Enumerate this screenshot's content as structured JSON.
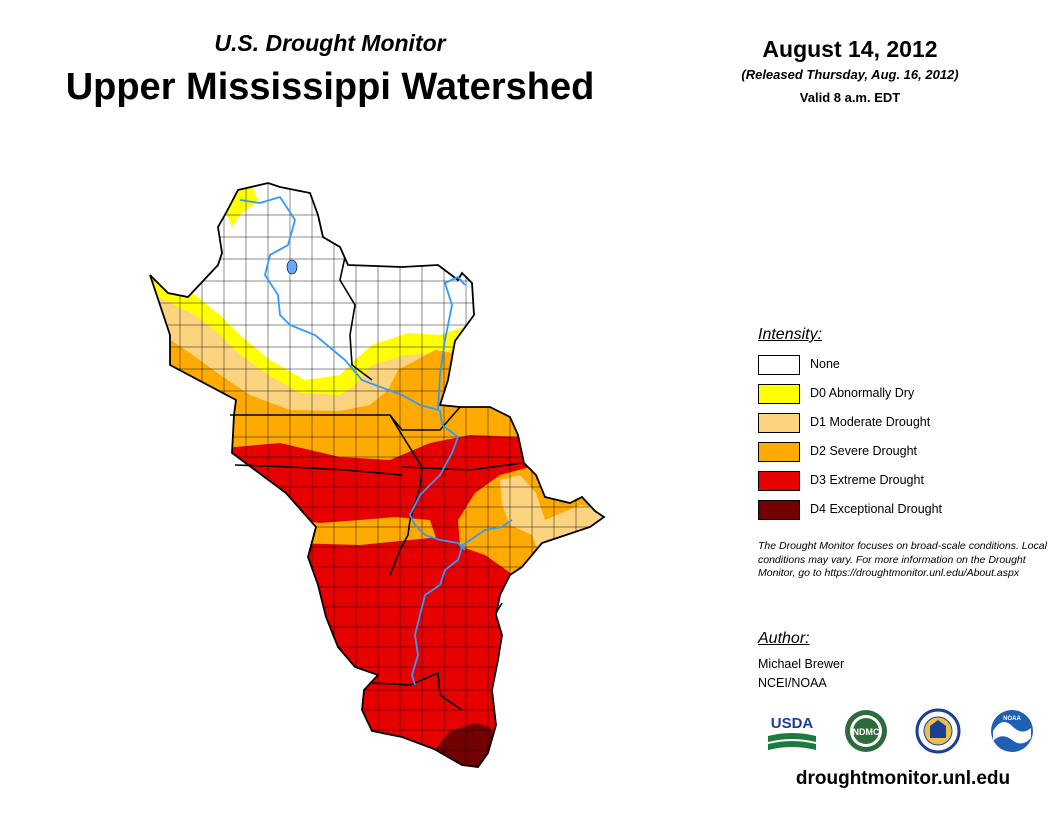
{
  "header": {
    "subtitle": "U.S. Drought Monitor",
    "title": "Upper Mississippi Watershed",
    "date": "August 14, 2012",
    "released": "(Released Thursday, Aug. 16, 2012)",
    "valid": "Valid 8 a.m. EDT"
  },
  "legend": {
    "heading": "Intensity:",
    "items": [
      {
        "label": "None",
        "color": "#ffffff"
      },
      {
        "label": "D0 Abnormally Dry",
        "color": "#ffff00"
      },
      {
        "label": "D1 Moderate Drought",
        "color": "#fcd37f"
      },
      {
        "label": "D2 Severe Drought",
        "color": "#ffaa00"
      },
      {
        "label": "D3 Extreme Drought",
        "color": "#e60000"
      },
      {
        "label": "D4 Exceptional Drought",
        "color": "#730000"
      }
    ]
  },
  "note": "The Drought Monitor focuses on broad-scale conditions. Local conditions may vary. For more information on the Drought Monitor, go to https://droughtmonitor.unl.edu/About.aspx",
  "author": {
    "heading": "Author:",
    "name": "Michael Brewer",
    "org": "NCEI/NOAA"
  },
  "logos": {
    "usda": "USDA",
    "ndmc": "NDMC",
    "noaa": "NOAA"
  },
  "footer": {
    "url": "droughtmonitor.unl.edu"
  },
  "colors": {
    "river": "#3399ff",
    "border": "#000000"
  }
}
